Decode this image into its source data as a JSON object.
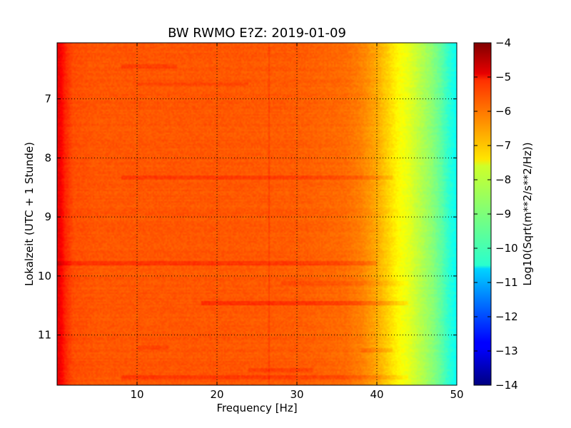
{
  "chart_data": {
    "type": "heatmap",
    "title": "BW RWMO E?Z: 2019-01-09",
    "xlabel": "Frequency [Hz]",
    "ylabel": "Lokalzeit (UTC + 1 Stunde)",
    "xlim": [
      0,
      50
    ],
    "ylim": [
      11.85,
      6.05
    ],
    "y_axis_inverted": true,
    "xticks": [
      10,
      20,
      30,
      40,
      50
    ],
    "xtick_labels": [
      "10",
      "20",
      "30",
      "40",
      "50"
    ],
    "yticks": [
      7,
      8,
      9,
      10,
      11
    ],
    "ytick_labels": [
      "7",
      "8",
      "9",
      "10",
      "11"
    ],
    "grid": true,
    "colormap": "jet",
    "colorbar": {
      "label": "Log10(Sqrt(m**2/s**2/Hz))",
      "range": [
        -14,
        -4
      ],
      "ticks": [
        -4,
        -5,
        -6,
        -7,
        -8,
        -9,
        -10,
        -11,
        -12,
        -13,
        -14
      ],
      "tick_labels": [
        "−4",
        "−5",
        "−6",
        "−7",
        "−8",
        "−9",
        "−10",
        "−11",
        "−12",
        "−13",
        "−14"
      ]
    },
    "spectrum_profile": {
      "frequency_hz": [
        0,
        0.5,
        1,
        2,
        5,
        10,
        20,
        30,
        36,
        38,
        40,
        41,
        42,
        43,
        44,
        45,
        46,
        47,
        48,
        49,
        50
      ],
      "value": [
        -5.0,
        -5.2,
        -5.6,
        -6.0,
        -6.1,
        -6.1,
        -6.1,
        -6.15,
        -6.3,
        -6.5,
        -6.9,
        -7.2,
        -7.5,
        -7.8,
        -8.0,
        -8.3,
        -8.6,
        -8.9,
        -9.3,
        -9.8,
        -10.2
      ]
    },
    "features": {
      "vertical_line_hz": 26.5,
      "horizontal_bands": [
        {
          "time": 6.45,
          "f_range": [
            8,
            15
          ],
          "delta": 0.25
        },
        {
          "time": 6.75,
          "f_range": [
            10,
            24
          ],
          "delta": 0.2
        },
        {
          "time": 8.33,
          "f_range": [
            8,
            42
          ],
          "delta": 0.25
        },
        {
          "time": 9.78,
          "f_range": [
            0,
            40
          ],
          "delta": 0.35
        },
        {
          "time": 10.13,
          "f_range": [
            28,
            44
          ],
          "delta": 0.2
        },
        {
          "time": 10.45,
          "f_range": [
            18,
            44
          ],
          "delta": 0.4
        },
        {
          "time": 11.2,
          "f_range": [
            10,
            14
          ],
          "delta": 0.2
        },
        {
          "time": 11.25,
          "f_range": [
            38,
            42
          ],
          "delta": 0.25
        },
        {
          "time": 11.6,
          "f_range": [
            24,
            32
          ],
          "delta": 0.25
        },
        {
          "time": 11.72,
          "f_range": [
            8,
            44
          ],
          "delta": 0.3
        }
      ]
    }
  }
}
